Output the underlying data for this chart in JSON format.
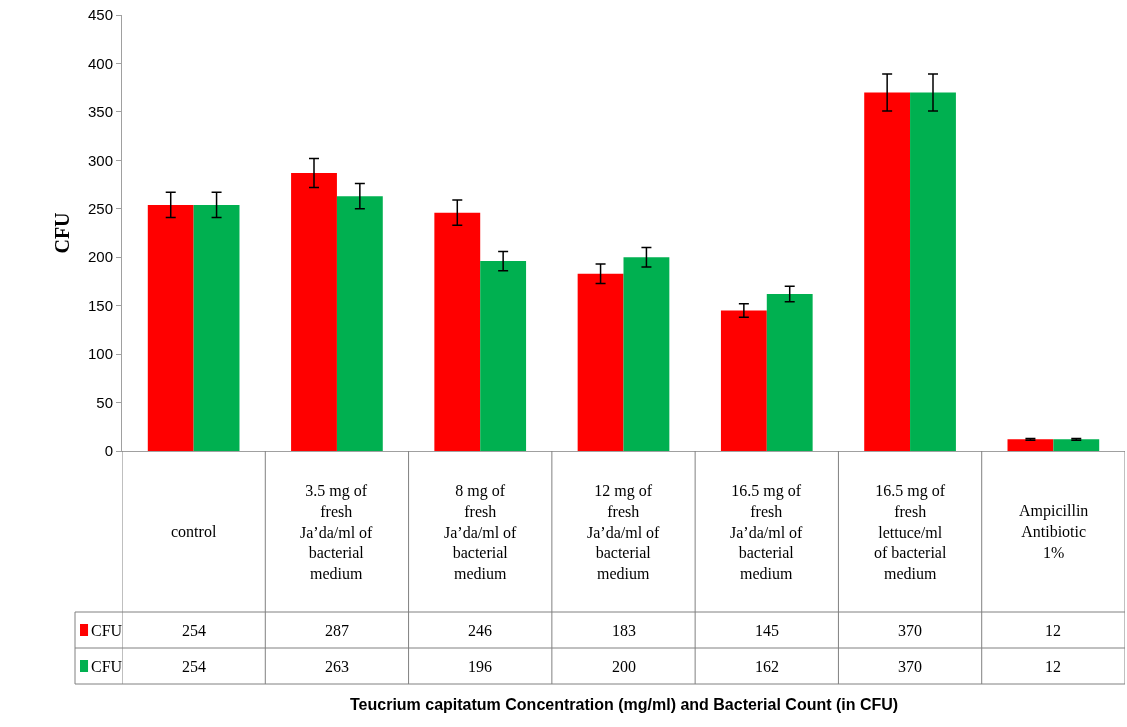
{
  "chart_data": {
    "type": "bar",
    "title": "Teucrium capitatum Concentration (mg/ml) and Bacterial Count (in CFU)",
    "ylabel": "CFU",
    "categories": [
      "control",
      "3.5 mg of fresh Ja’da/ml of bacterial medium",
      "8 mg of fresh Ja’da/ml of bacterial medium",
      "12 mg of fresh Ja’da/ml of bacterial medium",
      "16.5 mg of fresh Ja’da/ml of bacterial medium",
      "16.5 mg of fresh lettuce/ml of bacterial medium",
      "Ampicillin Antibiotic 1%"
    ],
    "series": [
      {
        "name": "CFU",
        "color": "#ff0000",
        "values": [
          254,
          287,
          246,
          183,
          145,
          370,
          12
        ],
        "errors": [
          13,
          15,
          13,
          10,
          7,
          19,
          1
        ]
      },
      {
        "name": "CFU",
        "color": "#00b050",
        "values": [
          254,
          263,
          196,
          200,
          162,
          370,
          12
        ],
        "errors": [
          13,
          13,
          10,
          10,
          8,
          19,
          1
        ]
      }
    ],
    "ylim": [
      0,
      450
    ],
    "yticks": [
      0,
      50,
      100,
      150,
      200,
      250,
      300,
      350,
      400,
      450
    ],
    "data_labels": true,
    "legend": "bottom left"
  }
}
